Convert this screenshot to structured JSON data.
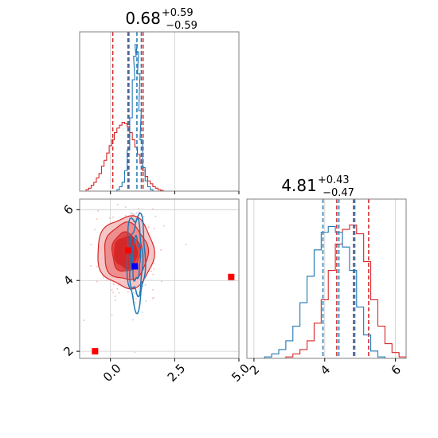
{
  "colors": {
    "red": "#d62728",
    "blue": "#1f77b4",
    "grid": "#cccccc",
    "axis": "#808080",
    "marker_blue": "#0000ff",
    "marker_red": "#ff0000"
  },
  "chart_data": [
    {
      "type": "histogram",
      "panel": "top-left",
      "title_main": "0.68",
      "title_sup": "+0.59",
      "title_sub": "−0.59",
      "x_range": [
        -1.2,
        5.0
      ],
      "grid": true,
      "series": [
        {
          "name": "",
          "color": "red",
          "x": [
            -0.9,
            -0.8,
            -0.7,
            -0.6,
            -0.5,
            -0.4,
            -0.3,
            -0.2,
            -0.1,
            0.0,
            0.1,
            0.2,
            0.3,
            0.4,
            0.5,
            0.6,
            0.7,
            0.8,
            0.9,
            1.0,
            1.1,
            1.2,
            1.3,
            1.4,
            1.5,
            1.6,
            1.7,
            1.8,
            1.9,
            2.0,
            2.1
          ],
          "density": [
            0.01,
            0.02,
            0.04,
            0.06,
            0.09,
            0.12,
            0.17,
            0.21,
            0.26,
            0.31,
            0.35,
            0.4,
            0.43,
            0.45,
            0.47,
            0.46,
            0.44,
            0.4,
            0.35,
            0.3,
            0.25,
            0.19,
            0.14,
            0.1,
            0.07,
            0.05,
            0.03,
            0.02,
            0.01,
            0.005,
            0.0
          ],
          "quantile_lines": [
            0.09,
            0.68,
            1.27
          ]
        },
        {
          "name": "",
          "color": "blue",
          "x": [
            0.3,
            0.4,
            0.5,
            0.6,
            0.7,
            0.8,
            0.9,
            0.95,
            1.0,
            1.05,
            1.1,
            1.15,
            1.2,
            1.3,
            1.4,
            1.5,
            1.6,
            1.7
          ],
          "density": [
            0.01,
            0.03,
            0.06,
            0.14,
            0.28,
            0.5,
            0.76,
            0.92,
            1.0,
            0.95,
            0.8,
            0.55,
            0.35,
            0.16,
            0.07,
            0.03,
            0.01,
            0.0
          ],
          "quantile_lines": [
            0.72,
            1.03,
            1.2
          ]
        }
      ]
    },
    {
      "type": "histogram",
      "panel": "bottom-right",
      "title_main": "4.81",
      "title_sup": "+0.43",
      "title_sub": "−0.47",
      "x_range": [
        1.8,
        6.3
      ],
      "x_ticks": [
        "2",
        "4",
        "6"
      ],
      "grid": true,
      "series": [
        {
          "name": "",
          "color": "red",
          "x": [
            3.0,
            3.2,
            3.4,
            3.6,
            3.8,
            4.0,
            4.2,
            4.4,
            4.6,
            4.8,
            5.0,
            5.2,
            5.4,
            5.6,
            5.8,
            6.0,
            6.2
          ],
          "density": [
            0.01,
            0.03,
            0.06,
            0.12,
            0.24,
            0.4,
            0.6,
            0.78,
            0.88,
            0.91,
            0.85,
            0.66,
            0.4,
            0.22,
            0.1,
            0.04,
            0.01
          ],
          "quantile_lines": [
            4.34,
            4.81,
            5.24
          ]
        },
        {
          "name": "",
          "color": "blue",
          "x": [
            2.4,
            2.6,
            2.8,
            3.0,
            3.2,
            3.4,
            3.6,
            3.8,
            4.0,
            4.2,
            4.4,
            4.6,
            4.8,
            5.0,
            5.2,
            5.4,
            5.6
          ],
          "density": [
            0.01,
            0.03,
            0.06,
            0.12,
            0.22,
            0.38,
            0.56,
            0.74,
            0.86,
            0.9,
            0.86,
            0.76,
            0.6,
            0.35,
            0.16,
            0.05,
            0.01
          ],
          "quantile_lines": [
            3.95,
            4.4,
            4.85
          ]
        }
      ]
    },
    {
      "type": "contour",
      "panel": "bottom-left",
      "x_range": [
        -1.2,
        5.0
      ],
      "y_range": [
        1.8,
        6.3
      ],
      "x_ticks": [
        "0.0",
        "2.5",
        "5.0"
      ],
      "y_ticks": [
        "2",
        "4",
        "6"
      ],
      "grid": true,
      "red_density": {
        "center": [
          0.6,
          4.8
        ],
        "levels": [
          {
            "rx": 0.55,
            "ry": 0.55
          },
          {
            "rx": 0.85,
            "ry": 0.8
          },
          {
            "rx": 1.1,
            "ry": 1.0
          }
        ]
      },
      "blue_contours": {
        "center": [
          1.0,
          4.6
        ],
        "levels": [
          {
            "rx": 0.15,
            "ry": 0.6
          },
          {
            "rx": 0.25,
            "ry": 1.0
          },
          {
            "rx": 0.35,
            "ry": 1.3
          }
        ]
      },
      "markers": [
        {
          "x": 0.7,
          "y": 4.85,
          "color": "red"
        },
        {
          "x": 0.95,
          "y": 4.4,
          "color": "blue"
        },
        {
          "x": 4.7,
          "y": 4.1,
          "color": "red"
        },
        {
          "x": -0.6,
          "y": 2.0,
          "color": "red"
        }
      ]
    }
  ]
}
